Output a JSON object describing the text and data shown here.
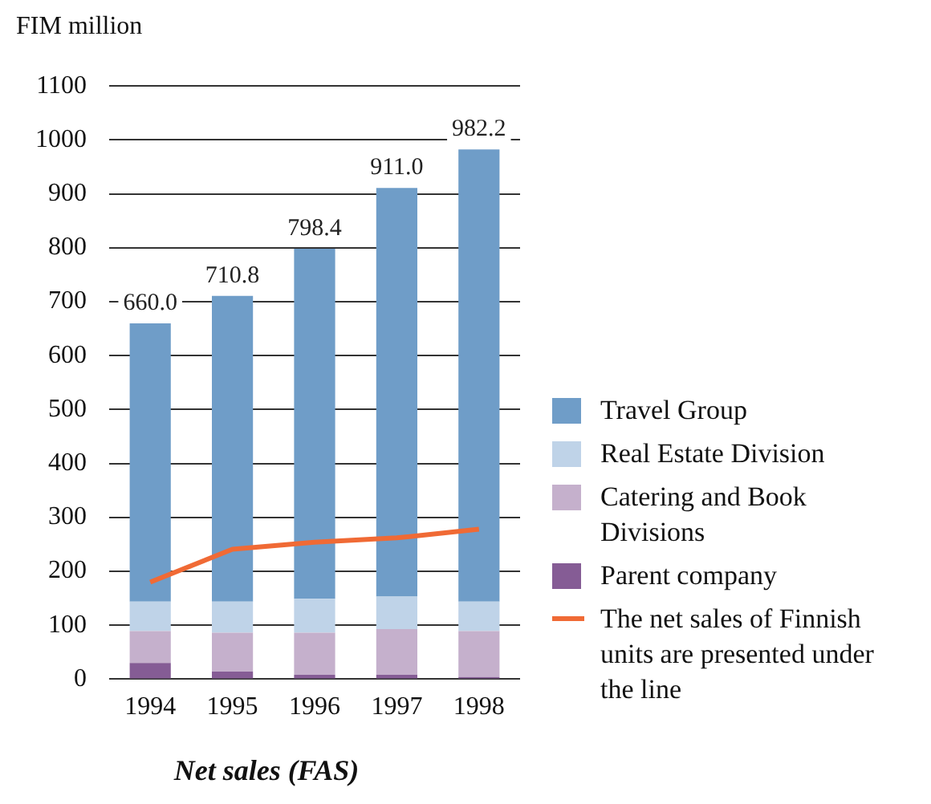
{
  "chart_data": {
    "type": "bar",
    "title": "Net sales (FAS)",
    "ylabel": "FIM million",
    "categories": [
      "1994",
      "1995",
      "1996",
      "1997",
      "1998"
    ],
    "stacked": true,
    "series": [
      {
        "name": "Parent company",
        "color": "#855c95",
        "values": [
          30,
          14,
          8,
          8,
          4
        ]
      },
      {
        "name": "Catering and Book Divisions",
        "color": "#c5b0cc",
        "values": [
          59,
          72,
          78,
          85,
          85
        ]
      },
      {
        "name": "Real Estate Division",
        "color": "#bfd3e8",
        "values": [
          55,
          58,
          63,
          60,
          55
        ]
      },
      {
        "name": "Travel Group",
        "color": "#6f9dc8",
        "values": [
          516,
          566.8,
          649.4,
          758,
          838.2
        ]
      },
      {
        "name": "The net sales of Finnish units are presented under the line",
        "type": "line",
        "color": "#f06a35",
        "values": [
          180,
          241,
          254,
          262,
          278
        ]
      }
    ],
    "totals": [
      "660.0",
      "710.8",
      "798.4",
      "911.0",
      "982.2"
    ],
    "ylim": [
      0,
      1100
    ],
    "yticks": [
      0,
      100,
      200,
      300,
      400,
      500,
      600,
      700,
      800,
      900,
      1000,
      1100
    ],
    "grid": "y",
    "legend": "right",
    "marker": "none"
  }
}
